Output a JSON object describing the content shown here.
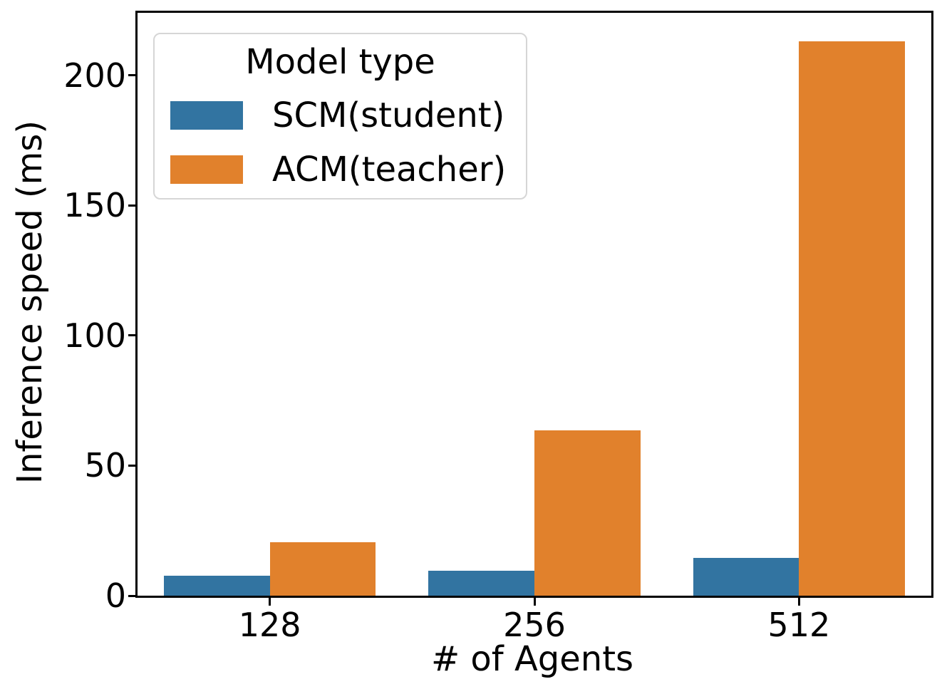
{
  "chart_data": {
    "type": "bar",
    "title": "",
    "xlabel": "# of Agents",
    "ylabel": "Inference speed (ms)",
    "categories": [
      "128",
      "256",
      "512"
    ],
    "series": [
      {
        "name": "SCM(student)",
        "color": "#3274a1",
        "values": [
          7.7,
          9.6,
          14.5
        ]
      },
      {
        "name": "ACM(teacher)",
        "color": "#e1812c",
        "values": [
          20.5,
          63.5,
          213
        ]
      }
    ],
    "legend_title": "Model type",
    "legend_position": "upper left",
    "y_ticks": [
      0,
      50,
      100,
      150,
      200
    ],
    "ylim": [
      0,
      224
    ],
    "grid": false,
    "axis_color": "#000000",
    "background_color": "#ffffff"
  }
}
